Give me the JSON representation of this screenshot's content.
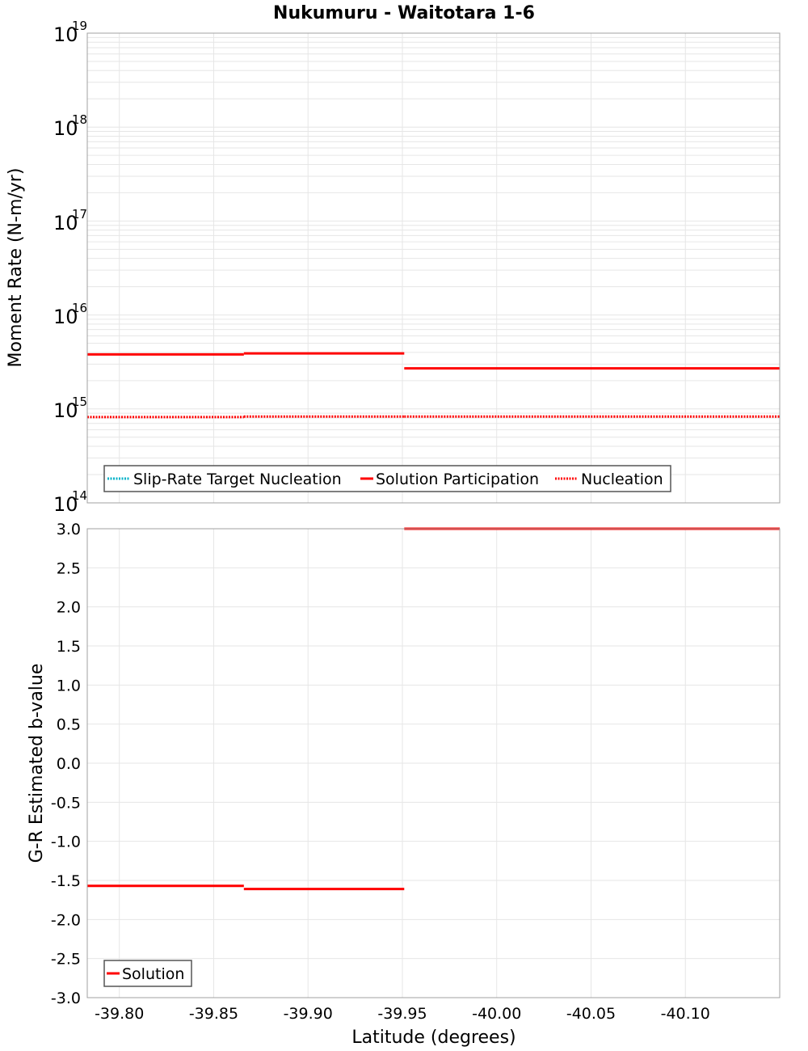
{
  "title": "Nukumuru - Waitotara 1-6",
  "colors": {
    "solution": "#ff0000",
    "nucleation": "#ff0000",
    "target": "#00b2c8",
    "grid": "#e6e6e6",
    "frame": "#a0a0a0"
  },
  "chart_data": [
    {
      "type": "line",
      "title": "Nukumuru - Waitotara 1-6",
      "xlabel": "Latitude (degrees)",
      "ylabel": "Moment Rate (N-m/yr)",
      "yscale": "log",
      "xlim": [
        -39.783,
        -40.15
      ],
      "ylim": [
        100000000000000.0,
        1e+19
      ],
      "y_ticks": [
        "10^14",
        "10^15",
        "10^16",
        "10^17",
        "10^18",
        "10^19"
      ],
      "grid": true,
      "legend_position": "lower left",
      "legend": [
        "Slip-Rate Target Nucleation",
        "Solution Participation",
        "Nucleation"
      ],
      "series": [
        {
          "name": "Solution Participation",
          "style": "solid",
          "color": "#ff0000",
          "segments": [
            {
              "x0": -39.783,
              "x1": -39.866,
              "y": 3800000000000000.0
            },
            {
              "x0": -39.866,
              "x1": -39.951,
              "y": 3900000000000000.0
            },
            {
              "x0": -39.951,
              "x1": -40.062,
              "y": 2700000000000000.0
            },
            {
              "x0": -40.062,
              "x1": -40.15,
              "y": 2700000000000000.0
            }
          ]
        },
        {
          "name": "Nucleation",
          "style": "dotted",
          "color": "#ff0000",
          "segments": [
            {
              "x0": -39.783,
              "x1": -39.866,
              "y": 820000000000000.0
            },
            {
              "x0": -39.866,
              "x1": -39.951,
              "y": 830000000000000.0
            },
            {
              "x0": -39.951,
              "x1": -40.062,
              "y": 830000000000000.0
            },
            {
              "x0": -40.062,
              "x1": -40.15,
              "y": 830000000000000.0
            }
          ]
        },
        {
          "name": "Slip-Rate Target Nucleation",
          "style": "dotted",
          "color": "#00b2c8",
          "segments": []
        }
      ]
    },
    {
      "type": "line",
      "xlabel": "Latitude (degrees)",
      "ylabel": "G-R Estimated b-value",
      "xlim": [
        -39.783,
        -40.15
      ],
      "ylim": [
        -3.0,
        3.0
      ],
      "x_ticks": [
        "-39.80",
        "-39.85",
        "-39.90",
        "-39.95",
        "-40.00",
        "-40.05",
        "-40.10"
      ],
      "y_ticks": [
        "3.0",
        "2.5",
        "2.0",
        "1.5",
        "1.0",
        "0.5",
        "0.0",
        "-0.5",
        "-1.0",
        "-1.5",
        "-2.0",
        "-2.5",
        "-3.0"
      ],
      "grid": true,
      "legend_position": "lower left",
      "legend": [
        "Solution"
      ],
      "series": [
        {
          "name": "Solution",
          "style": "solid",
          "color": "#ff0000",
          "segments": [
            {
              "x0": -39.783,
              "x1": -39.866,
              "y": -1.57
            },
            {
              "x0": -39.866,
              "x1": -39.951,
              "y": -1.61
            },
            {
              "x0": -39.951,
              "x1": -40.062,
              "y": 3.0
            },
            {
              "x0": -40.062,
              "x1": -40.15,
              "y": 3.0
            }
          ]
        }
      ]
    }
  ],
  "top": {
    "ylabel": "Moment Rate (N-m/yr)",
    "y_ticks": [
      {
        "base": "10",
        "exp": "19"
      },
      {
        "base": "10",
        "exp": "18"
      },
      {
        "base": "10",
        "exp": "17"
      },
      {
        "base": "10",
        "exp": "16"
      },
      {
        "base": "10",
        "exp": "15"
      },
      {
        "base": "10",
        "exp": "14"
      }
    ],
    "legend": {
      "target": "Slip-Rate Target Nucleation",
      "participation": "Solution Participation",
      "nucleation": "Nucleation"
    }
  },
  "bottom": {
    "ylabel": "G-R Estimated b-value",
    "y_ticks": [
      "3.0",
      "2.5",
      "2.0",
      "1.5",
      "1.0",
      "0.5",
      "0.0",
      "-0.5",
      "-1.0",
      "-1.5",
      "-2.0",
      "-2.5",
      "-3.0"
    ],
    "legend": {
      "solution": "Solution"
    }
  },
  "x_axis": {
    "label": "Latitude (degrees)",
    "ticks": [
      "-39.80",
      "-39.85",
      "-39.90",
      "-39.95",
      "-40.00",
      "-40.05",
      "-40.10"
    ]
  }
}
